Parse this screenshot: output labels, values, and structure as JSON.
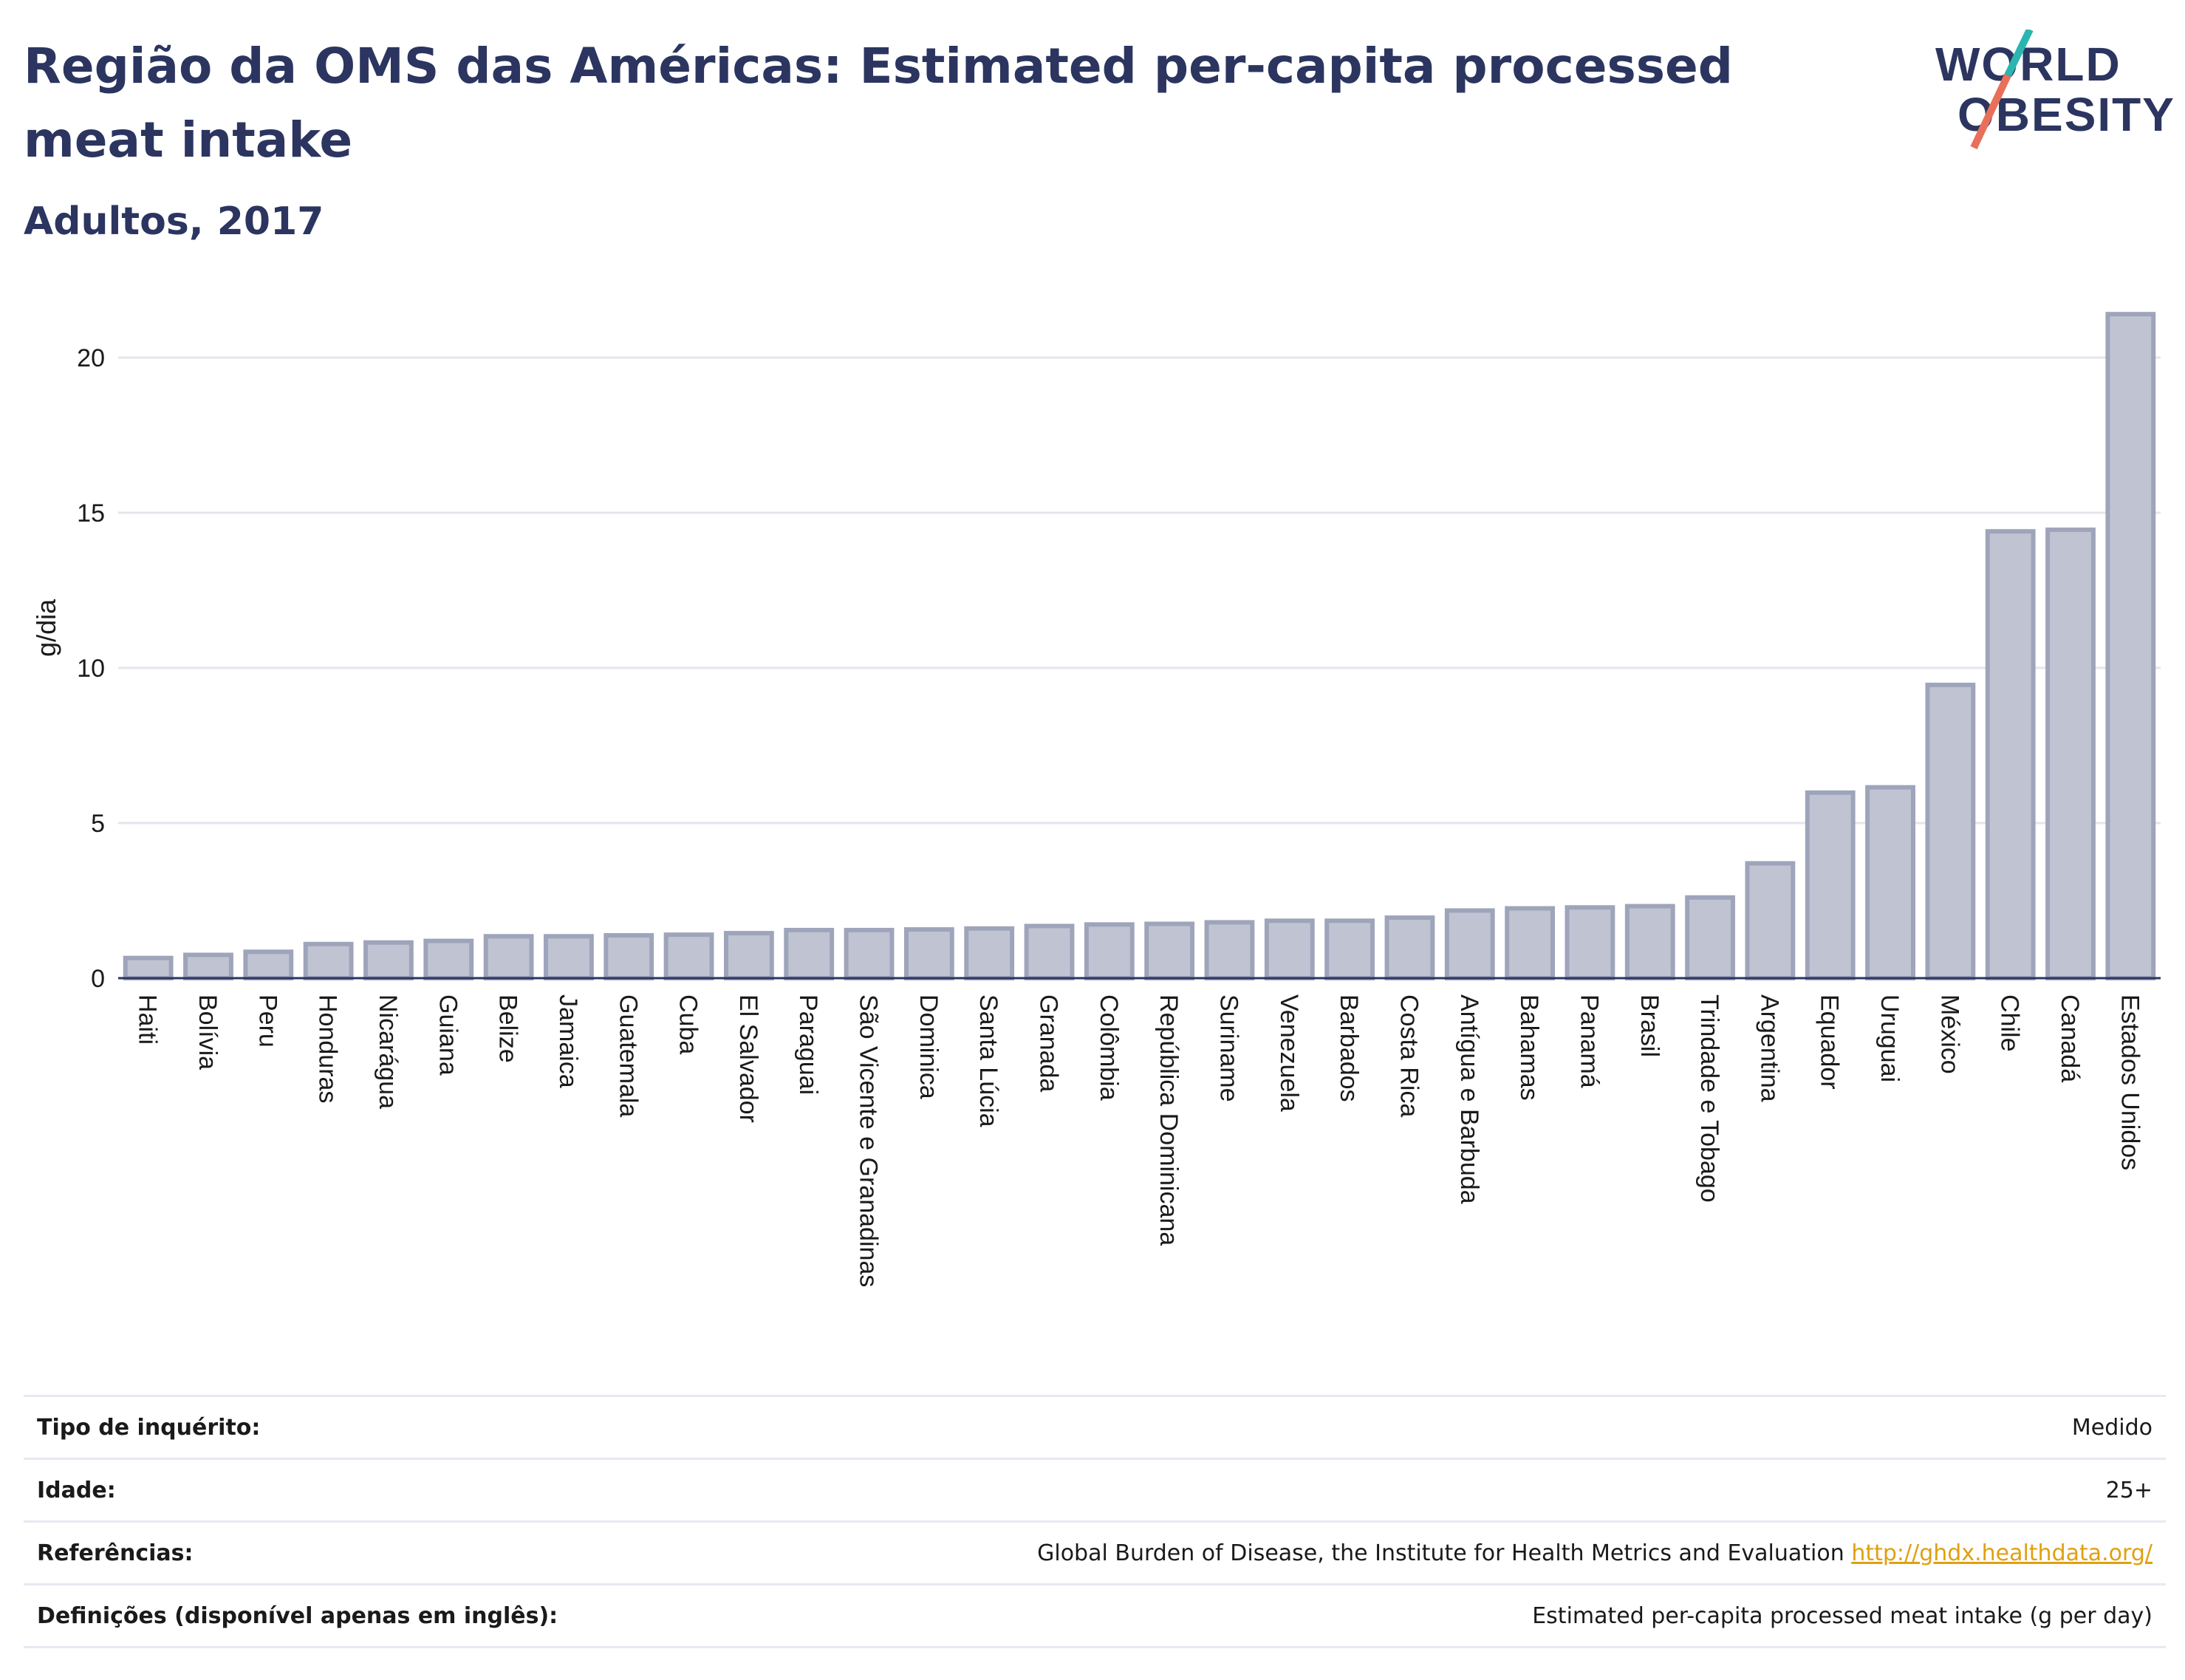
{
  "header": {
    "title": "Região da OMS das Américas: Estimated per-capita processed meat intake",
    "subtitle": "Adultos, 2017"
  },
  "logo": {
    "line1": "WORLD",
    "line2": "OBESITY",
    "accent_teal": "#2bb5b0",
    "accent_red": "#e8705a"
  },
  "chart_data": {
    "type": "bar",
    "ylabel": "g/dia",
    "ylim": [
      0,
      22
    ],
    "yticks": [
      0,
      5,
      10,
      15,
      20
    ],
    "grid": true,
    "bar_fill": "#c0c4d2",
    "bar_stroke": "#9ea4ba",
    "categories": [
      "Haiti",
      "Bolívia",
      "Peru",
      "Honduras",
      "Nicarágua",
      "Guiana",
      "Belize",
      "Jamaica",
      "Guatemala",
      "Cuba",
      "El Salvador",
      "Paraguai",
      "São Vicente e Granadinas",
      "Dominica",
      "Santa Lúcia",
      "Granada",
      "Colômbia",
      "República Dominicana",
      "Suriname",
      "Venezuela",
      "Barbados",
      "Costa Rica",
      "Antígua e Barbuda",
      "Bahamas",
      "Panamá",
      "Brasil",
      "Trindade e Tobago",
      "Argentina",
      "Equador",
      "Uruguai",
      "México",
      "Chile",
      "Canadá",
      "Estados Unidos"
    ],
    "values": [
      0.65,
      0.75,
      0.85,
      1.1,
      1.15,
      1.2,
      1.35,
      1.35,
      1.38,
      1.4,
      1.45,
      1.55,
      1.55,
      1.57,
      1.6,
      1.68,
      1.73,
      1.75,
      1.8,
      1.85,
      1.85,
      1.95,
      2.18,
      2.25,
      2.28,
      2.32,
      2.6,
      3.7,
      5.98,
      6.15,
      9.45,
      14.4,
      14.45,
      21.4
    ]
  },
  "info": {
    "rows": [
      {
        "label": "Tipo de inquérito:",
        "value": "Medido"
      },
      {
        "label": "Idade:",
        "value": "25+"
      },
      {
        "label": "Referências:",
        "value": "Global Burden of Disease, the Institute for Health Metrics and Evaluation",
        "link": "http://ghdx.healthdata.org/"
      },
      {
        "label": "Definições (disponível apenas em inglês):",
        "value": "Estimated per-capita processed meat intake (g per day)"
      }
    ]
  }
}
